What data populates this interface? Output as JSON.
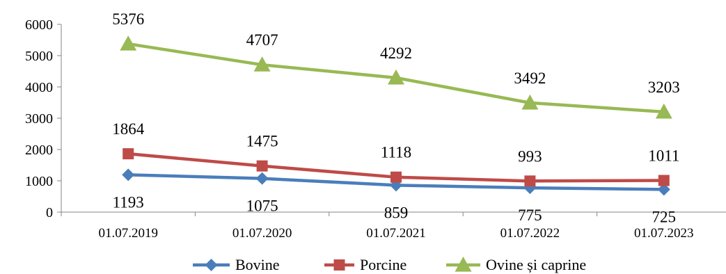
{
  "chart_data": {
    "type": "line",
    "title": "",
    "xlabel": "",
    "ylabel": "",
    "categories": [
      "01.07.2019",
      "01.07.2020",
      "01.07.2021",
      "01.07.2022",
      "01.07.2023"
    ],
    "ylim": [
      0,
      6000
    ],
    "yticks": [
      0,
      1000,
      2000,
      3000,
      4000,
      5000,
      6000
    ],
    "grid": false,
    "legend_position": "bottom",
    "series": [
      {
        "name": "Bovine",
        "values": [
          1193,
          1075,
          859,
          775,
          725
        ],
        "color": "#4a7ebb",
        "marker": "diamond",
        "label_position": "below"
      },
      {
        "name": "Porcine",
        "values": [
          1864,
          1475,
          1118,
          993,
          1011
        ],
        "color": "#be4b48",
        "marker": "square",
        "label_position": "above"
      },
      {
        "name": "Ovine și caprine",
        "values": [
          5376,
          4707,
          4292,
          3492,
          3203
        ],
        "color": "#98b954",
        "marker": "triangle",
        "label_position": "above"
      }
    ]
  }
}
